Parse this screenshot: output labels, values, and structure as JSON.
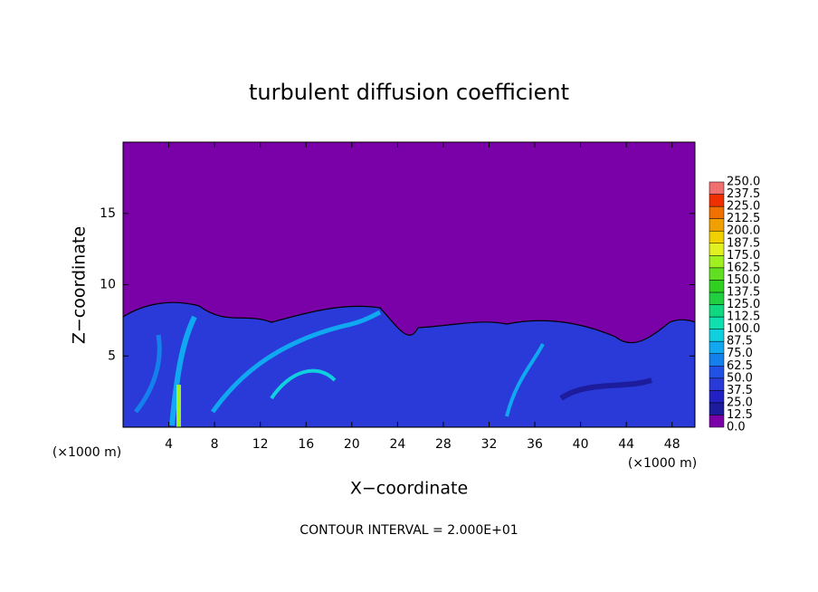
{
  "chart_data": {
    "type": "contour",
    "title": "turbulent diffusion coefficient",
    "x_label": "X−coordinate",
    "y_label": "Z−coordinate",
    "x_unit": "(×1000 m)",
    "annotation": "CONTOUR INTERVAL = 2.000E+01",
    "xlim": [
      0,
      50
    ],
    "ylim": [
      0,
      20
    ],
    "xticks": [
      4,
      8,
      12,
      16,
      20,
      24,
      28,
      32,
      36,
      40,
      44,
      48
    ],
    "yticks": [
      5,
      10,
      15
    ],
    "background_color": "#7a00a8",
    "colorbar": {
      "levels": [
        {
          "value": 0,
          "label": "0.0"
        },
        {
          "value": 12.5,
          "label": "12.5"
        },
        {
          "value": 25,
          "label": "25.0"
        },
        {
          "value": 37.5,
          "label": "37.5"
        },
        {
          "value": 50,
          "label": "50.0"
        },
        {
          "value": 62.5,
          "label": "62.5"
        },
        {
          "value": 75,
          "label": "75.0"
        },
        {
          "value": 87.5,
          "label": "87.5"
        },
        {
          "value": 100,
          "label": "100.0"
        },
        {
          "value": 112.5,
          "label": "112.5"
        },
        {
          "value": 125,
          "label": "125.0"
        },
        {
          "value": 137.5,
          "label": "137.5"
        },
        {
          "value": 150,
          "label": "150.0"
        },
        {
          "value": 162.5,
          "label": "162.5"
        },
        {
          "value": 175,
          "label": "175.0"
        },
        {
          "value": 187.5,
          "label": "187.5"
        },
        {
          "value": 200,
          "label": "200.0"
        },
        {
          "value": 212.5,
          "label": "212.5"
        },
        {
          "value": 225,
          "label": "225.0"
        },
        {
          "value": 237.5,
          "label": "237.5"
        },
        {
          "value": 250,
          "label": "250.0"
        }
      ],
      "colors": [
        "#7a00a8",
        "#1c1c9c",
        "#2222c4",
        "#2a3ad8",
        "#2050e4",
        "#1480ec",
        "#10a8f0",
        "#10d0e0",
        "#10e0b0",
        "#10d880",
        "#20d040",
        "#30d020",
        "#60e020",
        "#a0f020",
        "#e0f020",
        "#f0d000",
        "#f0a000",
        "#f07000",
        "#f03000",
        "#f07070"
      ]
    }
  }
}
